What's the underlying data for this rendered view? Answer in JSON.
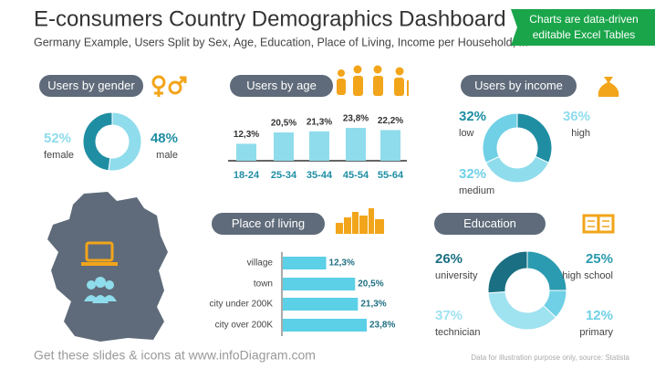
{
  "header": {
    "title": "E-consumers Country Demographics Dashboard",
    "subtitle": "Germany Example, Users Split by Sex, Age, Education, Place of Living, Income per Household, ...",
    "badge": [
      "Charts are data-driven",
      "editable Excel Tables"
    ]
  },
  "chart_data": [
    {
      "type": "donut",
      "title": "Users by gender",
      "categories": [
        "female",
        "male"
      ],
      "values": [
        52,
        48
      ],
      "value_labels": [
        "52%",
        "48%"
      ],
      "colors": [
        "#8fdcec",
        "#1f8ea3"
      ]
    },
    {
      "type": "bar",
      "title": "Users by age",
      "categories": [
        "18-24",
        "25-34",
        "35-44",
        "45-54",
        "55-64"
      ],
      "values": [
        12.3,
        20.5,
        21.3,
        23.8,
        22.2
      ],
      "value_labels": [
        "12,3%",
        "20,5%",
        "21,3%",
        "23,8%",
        "22,2%"
      ],
      "color": "#8fdcec"
    },
    {
      "type": "donut",
      "title": "Users by income",
      "categories": [
        "low",
        "high",
        "medium"
      ],
      "values": [
        32,
        36,
        32
      ],
      "value_labels": [
        "32%",
        "36%",
        "32%"
      ],
      "colors": [
        "#1f8ea3",
        "#8fdcec",
        "#6fd0e6"
      ]
    },
    {
      "type": "bar",
      "horizontal": true,
      "title": "Place of living",
      "categories": [
        "village",
        "town",
        "city under 200K",
        "city over 200K"
      ],
      "values": [
        12.3,
        20.5,
        21.3,
        23.8
      ],
      "value_labels": [
        "12,3%",
        "20,5%",
        "21,3%",
        "23,8%"
      ],
      "color": "#5bd0e6"
    },
    {
      "type": "donut",
      "title": "Education",
      "categories": [
        "high school",
        "primary",
        "technician",
        "university"
      ],
      "values": [
        25,
        12,
        37,
        26
      ],
      "value_labels": [
        "25%",
        "12%",
        "37%",
        "26%"
      ],
      "colors": [
        "#2a9bb0",
        "#6fd0e6",
        "#9fe2f0",
        "#1a6f82"
      ]
    }
  ],
  "footer": {
    "link": "Get these slides & icons at www.infoDiagram.com",
    "source": "Data for illustration purpose only, source: Statista"
  }
}
